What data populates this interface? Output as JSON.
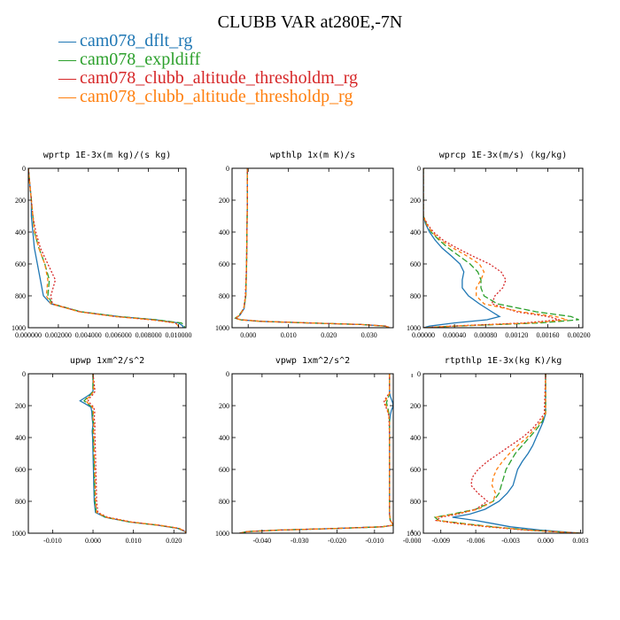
{
  "title": "CLUBB VAR at280E,-7N",
  "legend": [
    {
      "label": "cam078_dflt_rg",
      "color": "#1f77b4",
      "style": "solid"
    },
    {
      "label": "cam078_expldiff",
      "color": "#2ca02c",
      "style": "longdash"
    },
    {
      "label": "cam078_clubb_altitude_thresholdm_rg",
      "color": "#d62728",
      "style": "dot"
    },
    {
      "label": "cam078_clubb_altitude_thresholdp_rg",
      "color": "#ff7f0e",
      "style": "dash"
    }
  ],
  "chart_data": [
    {
      "type": "line",
      "title": "wprtp  1E-3x(m kg)/(s kg)",
      "xlim": [
        0,
        0.0105
      ],
      "ylim": [
        1000,
        0
      ],
      "xticks": [
        0,
        0.002,
        0.004,
        0.006,
        0.008,
        0.01
      ],
      "xticklabels": [
        "0.000000",
        "0.002000",
        "0.004000",
        "0.006000",
        "0.008000",
        "0.010000"
      ],
      "yticks": [
        0,
        200,
        400,
        600,
        800,
        1000
      ],
      "y": [
        0,
        100,
        200,
        300,
        400,
        500,
        600,
        700,
        800,
        850,
        900,
        930,
        950,
        970,
        990,
        1000
      ],
      "series": [
        {
          "name": "cam078_dflt_rg",
          "values": [
            0.0,
            0.0001,
            0.0002,
            0.0002,
            0.0003,
            0.0004,
            0.0006,
            0.0008,
            0.001,
            0.0015,
            0.0035,
            0.006,
            0.0085,
            0.01,
            0.0103,
            0.0103
          ]
        },
        {
          "name": "cam078_expldiff",
          "values": [
            0.0,
            0.0001,
            0.0002,
            0.0003,
            0.0004,
            0.0007,
            0.0011,
            0.0014,
            0.0013,
            0.0016,
            0.0035,
            0.006,
            0.0085,
            0.0102,
            0.0104,
            0.0104
          ]
        },
        {
          "name": "cam078_clubb_altitude_thresholdm_rg",
          "values": [
            0.0,
            0.0001,
            0.0002,
            0.0003,
            0.0005,
            0.0008,
            0.0013,
            0.0018,
            0.0015,
            0.0016,
            0.0034,
            0.0058,
            0.0082,
            0.0098,
            0.01,
            0.01
          ]
        },
        {
          "name": "cam078_clubb_altitude_thresholdp_rg",
          "values": [
            0.0,
            0.0001,
            0.0002,
            0.0003,
            0.0004,
            0.0007,
            0.0011,
            0.0013,
            0.0012,
            0.0015,
            0.0034,
            0.0058,
            0.0082,
            0.0098,
            0.01,
            0.01
          ]
        }
      ]
    },
    {
      "type": "line",
      "title": "wpthlp  1x(m K)/s",
      "xlim": [
        -0.004,
        0.036
      ],
      "ylim": [
        1000,
        0
      ],
      "xticks": [
        0,
        0.01,
        0.02,
        0.03
      ],
      "xticklabels": [
        "0.000",
        "0.010",
        "0.020",
        "0.030"
      ],
      "yticks": [
        0,
        200,
        400,
        600,
        800,
        1000
      ],
      "y": [
        0,
        200,
        400,
        600,
        800,
        880,
        920,
        940,
        950,
        960,
        970,
        980,
        990,
        1000
      ],
      "series": [
        {
          "name": "cam078_dflt_rg",
          "values": [
            -0.0002,
            -0.0002,
            -0.0003,
            -0.0004,
            -0.0006,
            -0.001,
            -0.002,
            -0.003,
            -0.002,
            0.003,
            0.015,
            0.028,
            0.034,
            0.035
          ]
        },
        {
          "name": "cam078_expldiff",
          "values": [
            -0.0002,
            -0.0002,
            -0.0003,
            -0.0004,
            -0.0006,
            -0.0011,
            -0.0022,
            -0.0032,
            -0.0021,
            0.003,
            0.015,
            0.028,
            0.034,
            0.035
          ]
        },
        {
          "name": "cam078_clubb_altitude_thresholdm_rg",
          "values": [
            -0.0002,
            -0.0002,
            -0.0003,
            -0.0004,
            -0.0007,
            -0.0011,
            -0.0021,
            -0.003,
            -0.0018,
            0.0032,
            0.0152,
            0.0282,
            0.0342,
            0.0352
          ]
        },
        {
          "name": "cam078_clubb_altitude_thresholdp_rg",
          "values": [
            -0.0002,
            -0.0002,
            -0.0003,
            -0.0004,
            -0.0006,
            -0.0011,
            -0.0021,
            -0.0031,
            -0.002,
            0.0031,
            0.0151,
            0.0281,
            0.0341,
            0.0351
          ]
        }
      ]
    },
    {
      "type": "line",
      "title": "wprcp  1E-3x(m/s) (kg/kg)",
      "xlim": [
        0,
        0.00205
      ],
      "ylim": [
        1000,
        0
      ],
      "xticks": [
        0,
        0.0004,
        0.0008,
        0.0012,
        0.0016,
        0.002
      ],
      "xticklabels": [
        "0.00000",
        "0.00040",
        "0.00080",
        "0.00120",
        "0.00160",
        "0.00200"
      ],
      "yticks": [
        0,
        200,
        400,
        600,
        800,
        1000
      ],
      "y": [
        0,
        300,
        350,
        400,
        450,
        500,
        550,
        600,
        650,
        700,
        750,
        800,
        850,
        900,
        930,
        950,
        970,
        990,
        1000
      ],
      "series": [
        {
          "name": "cam078_dflt_rg",
          "values": [
            0.0,
            0.0,
            3e-05,
            8e-05,
            0.00015,
            0.00024,
            0.00036,
            0.00047,
            0.00052,
            0.0005,
            0.0005,
            0.00058,
            0.00072,
            0.00088,
            0.00098,
            0.00082,
            0.0004,
            8e-05,
            0.0
          ]
        },
        {
          "name": "cam078_expldiff",
          "values": [
            0.0,
            0.0,
            4e-05,
            0.0001,
            0.0002,
            0.00032,
            0.00046,
            0.0006,
            0.0007,
            0.00074,
            0.00074,
            0.00078,
            0.00095,
            0.00145,
            0.0019,
            0.002,
            0.0015,
            0.0004,
            0.0
          ]
        },
        {
          "name": "cam078_clubb_altitude_thresholdm_rg",
          "values": [
            0.0,
            0.0,
            5e-05,
            0.00013,
            0.00025,
            0.00043,
            0.00063,
            0.00085,
            0.001,
            0.00106,
            0.00102,
            0.00092,
            0.00088,
            0.0012,
            0.0016,
            0.00175,
            0.0013,
            0.00035,
            0.0
          ]
        },
        {
          "name": "cam078_clubb_altitude_thresholdp_rg",
          "values": [
            0.0,
            0.0,
            4e-05,
            0.00011,
            0.00022,
            0.00038,
            0.00056,
            0.00072,
            0.00078,
            0.00074,
            0.00068,
            0.00068,
            0.00078,
            0.00125,
            0.0017,
            0.00185,
            0.0014,
            0.00038,
            0.0
          ]
        }
      ]
    },
    {
      "type": "line",
      "title": "upwp  1xm^2/s^2",
      "xlim": [
        -0.016,
        0.023
      ],
      "ylim": [
        1000,
        0
      ],
      "xticks": [
        -0.01,
        0,
        0.01,
        0.02
      ],
      "xticklabels": [
        "-0.010",
        "0.000",
        "0.010",
        "0.020"
      ],
      "yticks": [
        0,
        200,
        400,
        600,
        800,
        1000
      ],
      "y": [
        0,
        110,
        130,
        150,
        170,
        190,
        210,
        240,
        280,
        320,
        360,
        400,
        500,
        600,
        700,
        800,
        870,
        900,
        930,
        950,
        970,
        990,
        1000
      ],
      "series": [
        {
          "name": "cam078_dflt_rg",
          "values": [
            0.0,
            0.0,
            -0.0008,
            -0.002,
            -0.0032,
            -0.0018,
            -0.0005,
            -0.0003,
            -0.0002,
            0.0,
            -0.0002,
            -0.0001,
            0.0,
            0.0001,
            0.0002,
            0.0003,
            0.0006,
            0.003,
            0.009,
            0.016,
            0.021,
            0.0228,
            0.023
          ]
        },
        {
          "name": "cam078_expldiff",
          "values": [
            0.0,
            0.0,
            -0.0005,
            -0.0015,
            -0.0022,
            -0.0012,
            -0.0002,
            0.0,
            -0.0001,
            0.0002,
            0.0,
            0.0001,
            0.0002,
            0.0003,
            0.0004,
            0.0005,
            0.0008,
            0.0032,
            0.0092,
            0.0162,
            0.0212,
            0.0228,
            0.023
          ]
        },
        {
          "name": "cam078_clubb_altitude_thresholdm_rg",
          "values": [
            0.0,
            0.0005,
            0.0,
            -0.0008,
            -0.0012,
            -0.0006,
            0.0002,
            0.0004,
            0.0003,
            0.0005,
            0.0004,
            0.0005,
            0.0006,
            0.0007,
            0.0008,
            0.0009,
            0.0012,
            0.0036,
            0.0096,
            0.0165,
            0.0214,
            0.0229,
            0.023
          ]
        },
        {
          "name": "cam078_clubb_altitude_thresholdp_rg",
          "values": [
            0.0,
            0.0002,
            -0.0004,
            -0.0012,
            -0.0018,
            -0.001,
            -0.0001,
            0.0001,
            0.0,
            0.0002,
            0.0001,
            0.0002,
            0.0003,
            0.0004,
            0.0005,
            0.0006,
            0.0009,
            0.0033,
            0.0093,
            0.0163,
            0.0213,
            0.0228,
            0.023
          ]
        }
      ]
    },
    {
      "type": "line",
      "title": "vpwp  1xm^2/s^2",
      "xlim": [
        -0.048,
        -0.005
      ],
      "ylim": [
        1000,
        0
      ],
      "xticks": [
        -0.04,
        -0.03,
        -0.02,
        -0.01,
        0
      ],
      "xticklabels": [
        "-0.040",
        "-0.030",
        "-0.020",
        "-0.010",
        "-0.000"
      ],
      "yticks": [
        0,
        200,
        400,
        600,
        800,
        1000
      ],
      "y": [
        0,
        120,
        140,
        160,
        180,
        200,
        230,
        260,
        300,
        400,
        500,
        600,
        700,
        800,
        880,
        920,
        940,
        950,
        960,
        970,
        980,
        990,
        1000
      ],
      "series": [
        {
          "name": "cam078_dflt_rg",
          "values": [
            -0.006,
            -0.006,
            -0.0058,
            -0.0055,
            -0.0052,
            -0.005,
            -0.0055,
            -0.0058,
            -0.006,
            -0.006,
            -0.006,
            -0.006,
            -0.006,
            -0.006,
            -0.006,
            -0.0058,
            -0.0052,
            -0.005,
            -0.008,
            -0.02,
            -0.035,
            -0.044,
            -0.046
          ]
        },
        {
          "name": "cam078_expldiff",
          "values": [
            -0.006,
            -0.006,
            -0.0062,
            -0.0065,
            -0.0068,
            -0.0066,
            -0.0063,
            -0.0061,
            -0.006,
            -0.006,
            -0.006,
            -0.006,
            -0.006,
            -0.006,
            -0.006,
            -0.0058,
            -0.0052,
            -0.005,
            -0.008,
            -0.02,
            -0.035,
            -0.044,
            -0.046
          ]
        },
        {
          "name": "cam078_clubb_altitude_thresholdm_rg",
          "values": [
            -0.006,
            -0.006,
            -0.0066,
            -0.0072,
            -0.0075,
            -0.0071,
            -0.0066,
            -0.0062,
            -0.0061,
            -0.006,
            -0.006,
            -0.006,
            -0.006,
            -0.006,
            -0.006,
            -0.0058,
            -0.0052,
            -0.005,
            -0.008,
            -0.02,
            -0.035,
            -0.044,
            -0.046
          ]
        },
        {
          "name": "cam078_clubb_altitude_thresholdp_rg",
          "values": [
            -0.006,
            -0.006,
            -0.0064,
            -0.0069,
            -0.0072,
            -0.0069,
            -0.0065,
            -0.0062,
            -0.006,
            -0.006,
            -0.006,
            -0.006,
            -0.006,
            -0.006,
            -0.006,
            -0.0058,
            -0.0052,
            -0.005,
            -0.008,
            -0.02,
            -0.035,
            -0.044,
            -0.046
          ]
        }
      ]
    },
    {
      "type": "line",
      "title": "rtpthlp  1E-3x(kg K)/kg",
      "xlim": [
        -0.0105,
        0.0032
      ],
      "ylim": [
        1000,
        0
      ],
      "xticks": [
        -0.009,
        -0.006,
        -0.003,
        0,
        0.003
      ],
      "xticklabels": [
        "-0.009",
        "-0.006",
        "-0.003",
        "0.000",
        "0.003"
      ],
      "yticks": [
        0,
        200,
        400,
        600,
        800,
        1000
      ],
      "y": [
        0,
        250,
        300,
        350,
        400,
        450,
        500,
        550,
        600,
        650,
        700,
        750,
        800,
        850,
        880,
        900,
        920,
        940,
        960,
        980,
        1000
      ],
      "series": [
        {
          "name": "cam078_dflt_rg",
          "values": [
            0.0,
            0.0,
            -0.0002,
            -0.0005,
            -0.0008,
            -0.0011,
            -0.0015,
            -0.002,
            -0.0024,
            -0.0026,
            -0.0028,
            -0.0033,
            -0.004,
            -0.0052,
            -0.0065,
            -0.008,
            -0.006,
            -0.0045,
            -0.003,
            -0.0005,
            0.003
          ]
        },
        {
          "name": "cam078_expldiff",
          "values": [
            0.0,
            0.0,
            -0.0003,
            -0.0008,
            -0.0014,
            -0.002,
            -0.0026,
            -0.003,
            -0.0034,
            -0.0036,
            -0.0038,
            -0.004,
            -0.0045,
            -0.006,
            -0.008,
            -0.0095,
            -0.0092,
            -0.007,
            -0.0045,
            -0.0015,
            0.003
          ]
        },
        {
          "name": "cam078_clubb_altitude_thresholdm_rg",
          "values": [
            0.0,
            -0.0001,
            -0.0006,
            -0.0012,
            -0.002,
            -0.003,
            -0.004,
            -0.005,
            -0.0058,
            -0.0063,
            -0.0064,
            -0.0058,
            -0.005,
            -0.006,
            -0.0075,
            -0.009,
            -0.0094,
            -0.0075,
            -0.005,
            -0.0018,
            0.003
          ]
        },
        {
          "name": "cam078_clubb_altitude_thresholdp_rg",
          "values": [
            0.0,
            0.0,
            -0.0004,
            -0.001,
            -0.0016,
            -0.0024,
            -0.0031,
            -0.0037,
            -0.0042,
            -0.0045,
            -0.0046,
            -0.0043,
            -0.0045,
            -0.0058,
            -0.0078,
            -0.0094,
            -0.0093,
            -0.0072,
            -0.0047,
            -0.0016,
            0.003
          ]
        }
      ]
    }
  ]
}
